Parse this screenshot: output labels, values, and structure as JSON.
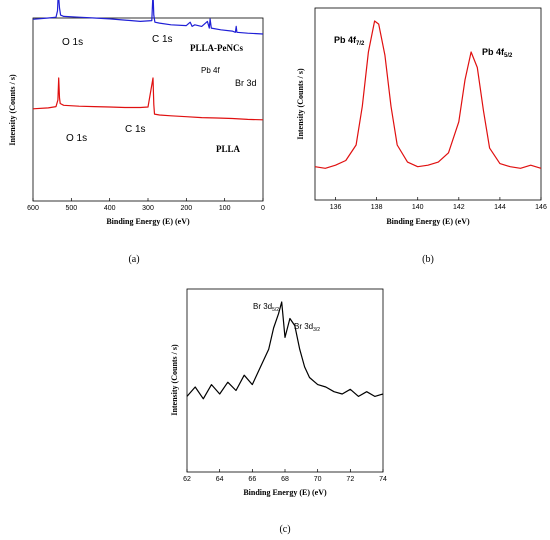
{
  "panel_labels": {
    "a": "(a)",
    "b": "(b)",
    "c": "(c)"
  },
  "chart_data": [
    {
      "type": "line",
      "panel": "a",
      "xlabel": "Binding Energy (E) (eV)",
      "ylabel": "Intensity (Counts / s)",
      "xlim": [
        600,
        0
      ],
      "xticks": [
        "600",
        "500",
        "400",
        "300",
        "200",
        "100",
        "0"
      ],
      "series": [
        {
          "name": "PLLA-PeNCs",
          "color": "#1f1fd6",
          "x": [
            600,
            560,
            540,
            536,
            534,
            531,
            528,
            520,
            480,
            440,
            400,
            360,
            320,
            290,
            287,
            285,
            282,
            270,
            240,
            200,
            190,
            185,
            178,
            160,
            145,
            140,
            138,
            135,
            110,
            80,
            72,
            70,
            68,
            40,
            0
          ],
          "y": [
            0.35,
            0.38,
            0.4,
            0.55,
            1.0,
            0.62,
            0.45,
            0.42,
            0.4,
            0.38,
            0.36,
            0.33,
            0.3,
            0.32,
            0.98,
            0.45,
            0.28,
            0.26,
            0.22,
            0.2,
            0.28,
            0.18,
            0.22,
            0.18,
            0.3,
            0.14,
            0.36,
            0.14,
            0.1,
            0.07,
            0.04,
            0.18,
            0.04,
            0.02,
            0.0
          ]
        },
        {
          "name": "PLLA",
          "color": "#e01010",
          "x": [
            600,
            560,
            540,
            535,
            533,
            531,
            529,
            520,
            480,
            440,
            400,
            360,
            320,
            300,
            287,
            285,
            283,
            270,
            240,
            200,
            160,
            120,
            80,
            40,
            0
          ],
          "y": [
            0.3,
            0.32,
            0.35,
            0.5,
            1.0,
            0.55,
            0.42,
            0.38,
            0.36,
            0.35,
            0.34,
            0.33,
            0.33,
            0.34,
            1.0,
            0.4,
            0.18,
            0.16,
            0.14,
            0.12,
            0.1,
            0.09,
            0.08,
            0.06,
            0.05
          ]
        }
      ],
      "annotations": [
        {
          "text": "O 1s",
          "series": "PLLA-PeNCs"
        },
        {
          "text": "C 1s",
          "series": "PLLA-PeNCs"
        },
        {
          "text": "PLLA-PeNCs",
          "series": "PLLA-PeNCs"
        },
        {
          "text": "Pb 4f",
          "series": "PLLA-PeNCs"
        },
        {
          "text": "Br 3d",
          "series": "PLLA-PeNCs"
        },
        {
          "text": "O 1s",
          "series": "PLLA"
        },
        {
          "text": "C 1s",
          "series": "PLLA"
        },
        {
          "text": "PLLA",
          "series": "PLLA"
        }
      ]
    },
    {
      "type": "line",
      "panel": "b",
      "xlabel": "Binding Energy (E) (eV)",
      "ylabel": "Intensity (Counts / s)",
      "xlim": [
        135,
        146
      ],
      "xticks": [
        "136",
        "138",
        "140",
        "142",
        "144",
        "146"
      ],
      "series": [
        {
          "color": "#e01010",
          "x": [
            135,
            135.5,
            136,
            136.5,
            137,
            137.3,
            137.6,
            137.9,
            138.1,
            138.4,
            138.7,
            139,
            139.5,
            140,
            140.5,
            141,
            141.5,
            142,
            142.3,
            142.6,
            142.9,
            143.2,
            143.5,
            144,
            144.5,
            145,
            145.5,
            146
          ],
          "y": [
            0.06,
            0.05,
            0.07,
            0.1,
            0.2,
            0.45,
            0.8,
            1.0,
            0.98,
            0.78,
            0.45,
            0.2,
            0.09,
            0.06,
            0.07,
            0.09,
            0.15,
            0.35,
            0.62,
            0.8,
            0.7,
            0.42,
            0.18,
            0.08,
            0.06,
            0.05,
            0.07,
            0.05
          ]
        }
      ],
      "annotations": [
        {
          "text": "Pb 4f",
          "sub": "7/2"
        },
        {
          "text": "Pb 4f",
          "sub": "5/2"
        }
      ]
    },
    {
      "type": "line",
      "panel": "c",
      "xlabel": "Binding Energy (E) (eV)",
      "ylabel": "Intensity (Counts / s)",
      "xlim": [
        62,
        74
      ],
      "xticks": [
        "62",
        "64",
        "66",
        "68",
        "70",
        "72",
        "74"
      ],
      "series": [
        {
          "color": "#000000",
          "x": [
            62,
            62.5,
            63,
            63.5,
            64,
            64.5,
            65,
            65.5,
            66,
            66.5,
            67,
            67.3,
            67.6,
            67.8,
            68,
            68.3,
            68.6,
            68.9,
            69.2,
            69.5,
            70,
            70.5,
            71,
            71.5,
            72,
            72.5,
            73,
            73.5,
            74
          ],
          "y": [
            0.2,
            0.28,
            0.18,
            0.3,
            0.22,
            0.32,
            0.25,
            0.38,
            0.3,
            0.45,
            0.6,
            0.78,
            0.9,
            1.0,
            0.7,
            0.86,
            0.8,
            0.6,
            0.45,
            0.36,
            0.3,
            0.28,
            0.24,
            0.22,
            0.26,
            0.2,
            0.24,
            0.2,
            0.22
          ]
        }
      ],
      "annotations": [
        {
          "text": "Br 3d",
          "sub": "5/2"
        },
        {
          "text": "Br 3d",
          "sub": "3/2"
        }
      ]
    }
  ]
}
